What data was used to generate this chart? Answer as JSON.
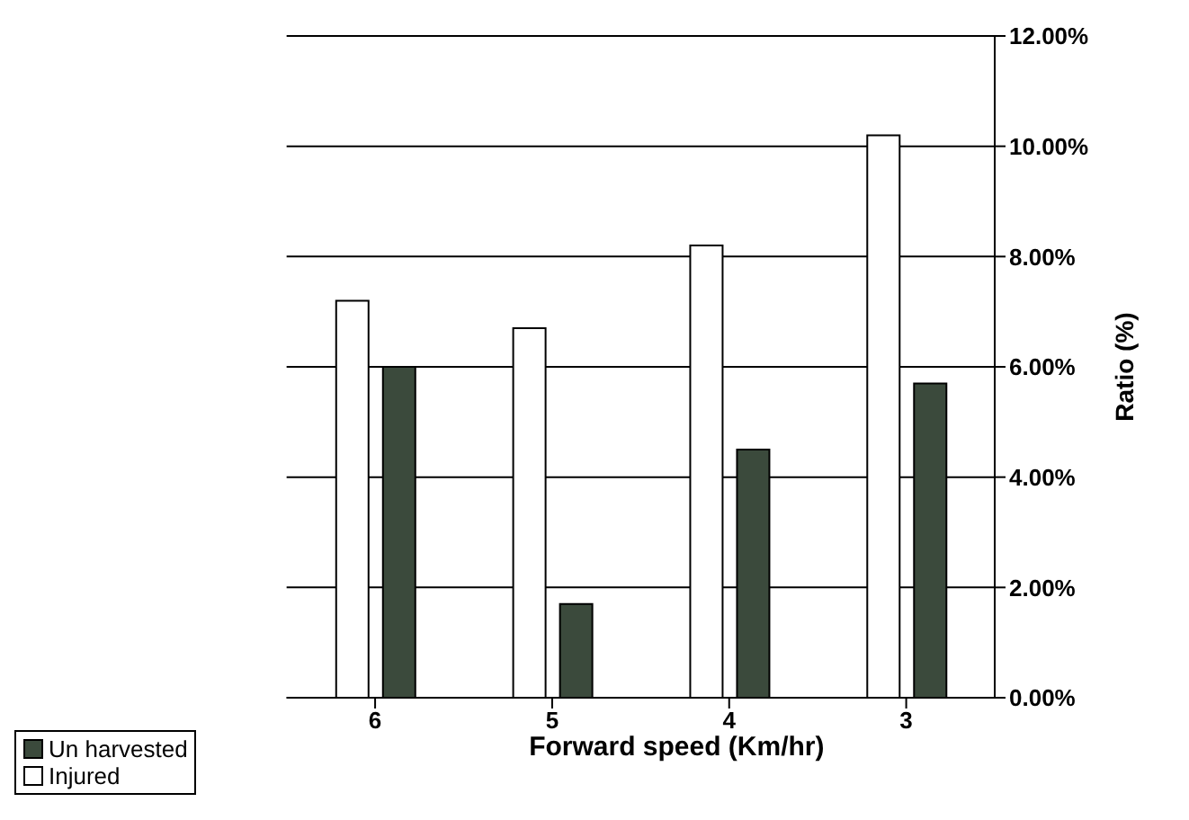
{
  "chart_data": {
    "type": "bar",
    "xlabel": "Forward speed    (Km/hr)",
    "ylabel": "Ratio      (%)",
    "categories": [
      "6",
      "5",
      "4",
      "3"
    ],
    "series": [
      {
        "name": "Injured",
        "color": "#ffffff",
        "values": [
          7.2,
          6.7,
          8.2,
          10.2
        ]
      },
      {
        "name": "Un harvested",
        "color": "#3b4a3c",
        "values": [
          6.0,
          1.7,
          4.5,
          5.7
        ]
      }
    ],
    "ylim": [
      0,
      12
    ],
    "yticks": [
      {
        "value": 0,
        "label": "0.00%"
      },
      {
        "value": 2,
        "label": "2.00%"
      },
      {
        "value": 4,
        "label": "4.00%"
      },
      {
        "value": 6,
        "label": "6.00%"
      },
      {
        "value": 8,
        "label": "8.00%"
      },
      {
        "value": 10,
        "label": "10.00%"
      },
      {
        "value": 12,
        "label": "12.00%"
      }
    ],
    "grid": "y",
    "legend": "bottom left"
  }
}
